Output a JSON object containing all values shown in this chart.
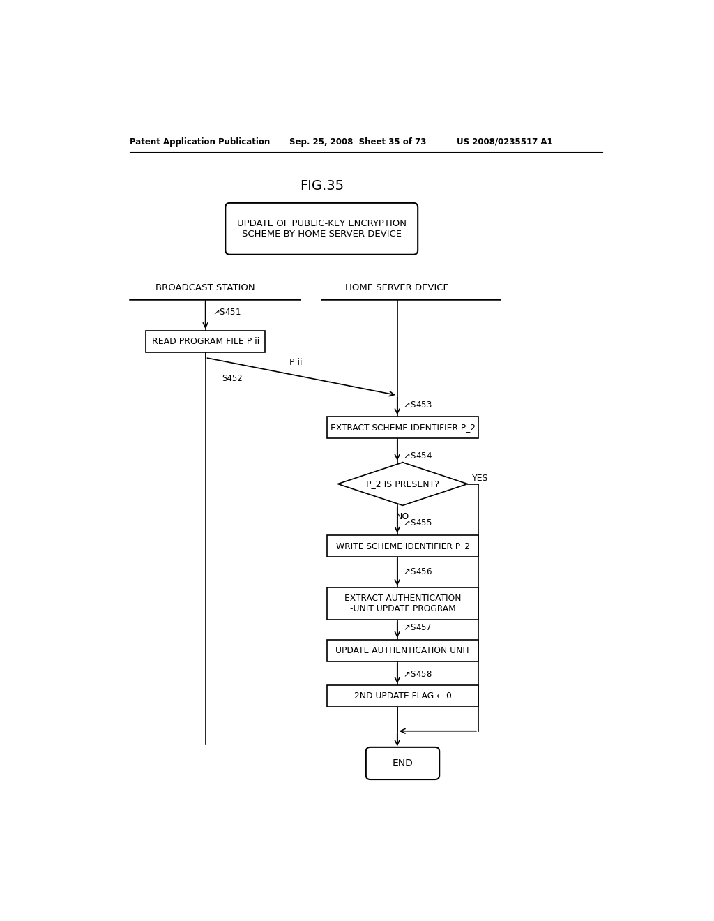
{
  "bg_color": "#ffffff",
  "header_left": "Patent Application Publication",
  "header_mid": "Sep. 25, 2008  Sheet 35 of 73",
  "header_right": "US 2008/0235517 A1",
  "fig_title": "FIG.35",
  "title_box_text": "UPDATE OF PUBLIC-KEY ENCRYPTION\nSCHEME BY HOME SERVER DEVICE",
  "col1_label": "BROADCAST STATION",
  "col2_label": "HOME SERVER DEVICE",
  "s451_label": "S451",
  "s452_label": "S452",
  "s453_label": "S453",
  "s454_label": "S454",
  "s455_label": "S455",
  "s456_label": "S456",
  "s457_label": "S457",
  "s458_label": "S458",
  "pii_label": "P ii",
  "yes_label": "YES",
  "no_label": "NO",
  "box1_text": "READ PROGRAM FILE P ii",
  "box2_text": "EXTRACT SCHEME IDENTIFIER P_2",
  "diamond_text": "P_2 IS PRESENT?",
  "box3_text": "WRITE SCHEME IDENTIFIER P_2",
  "box4_text": "EXTRACT AUTHENTICATION\n-UNIT UPDATE PROGRAM",
  "box5_text": "UPDATE AUTHENTICATION UNIT",
  "box6_text": "2ND UPDATE FLAG ← 0",
  "end_text": "END"
}
